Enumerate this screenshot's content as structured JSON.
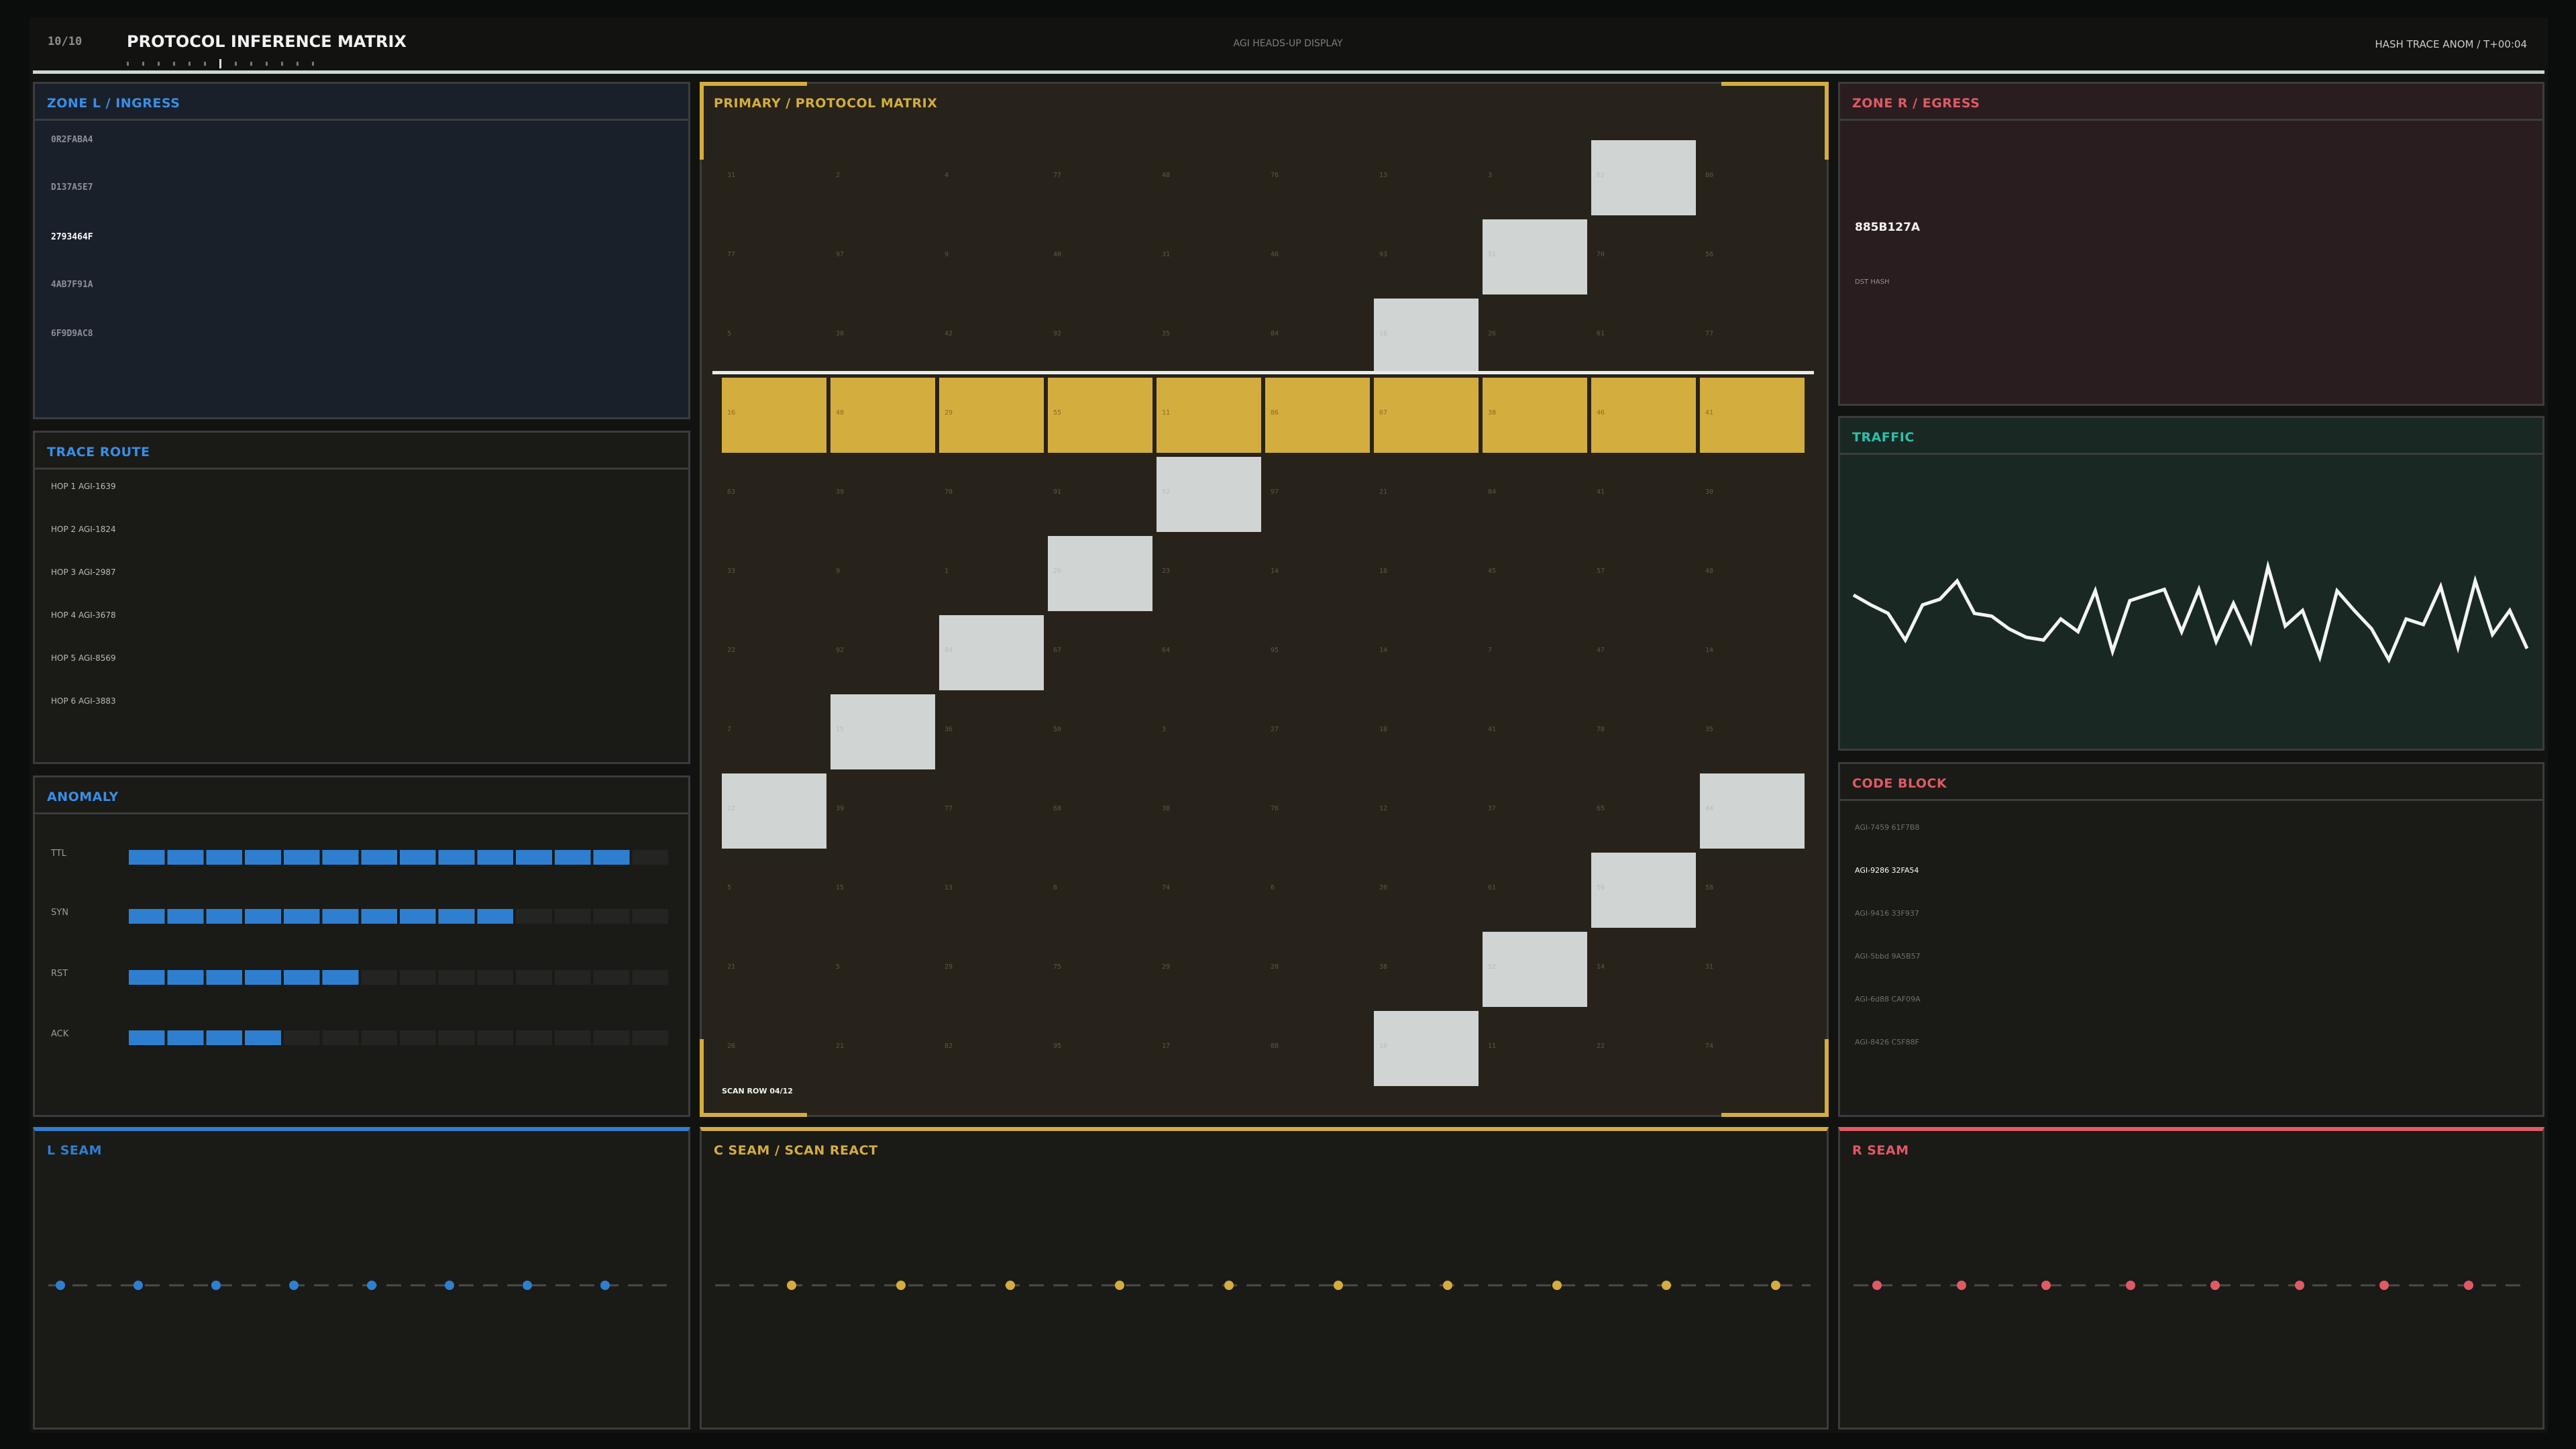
{
  "header": {
    "index": "10/10",
    "title": "PROTOCOL INFERENCE MATRIX",
    "center": "AGI HEADS-UP DISPLAY",
    "status": "HASH TRACE ANOM / T+00:04"
  },
  "zone_l": {
    "title": "ZONE L / INGRESS",
    "items": [
      "0R2FABA4",
      "D137A5E7",
      "2793464F",
      "4AB7F91A",
      "6F9D9AC8"
    ],
    "active": 2
  },
  "trace_route": {
    "title": "TRACE ROUTE",
    "hops": [
      "HOP 1 AGI-1639",
      "HOP 2 AGI-1824",
      "HOP 3 AGI-2987",
      "HOP 4 AGI-3678",
      "HOP 5 AGI-8569",
      "HOP 6 AGI-3883"
    ]
  },
  "anomaly": {
    "title": "ANOMALY",
    "max": 14,
    "bars": [
      {
        "label": "TTL",
        "value": 13
      },
      {
        "label": "SYN",
        "value": 10
      },
      {
        "label": "RST",
        "value": 6
      },
      {
        "label": "ACK",
        "value": 4
      }
    ]
  },
  "l_seam": {
    "title": "L SEAM"
  },
  "primary": {
    "title": "PRIMARY / PROTOCOL MATRIX",
    "active_row": 3,
    "active_cells": [
      [
        0,
        8
      ],
      [
        1,
        7
      ],
      [
        2,
        6
      ],
      [
        4,
        4
      ],
      [
        5,
        3
      ],
      [
        6,
        2
      ],
      [
        7,
        1
      ],
      [
        8,
        0
      ],
      [
        8,
        9
      ],
      [
        9,
        8
      ],
      [
        10,
        7
      ],
      [
        11,
        6
      ]
    ],
    "rows": [
      [
        31,
        2,
        4,
        77,
        48,
        76,
        13,
        3,
        62,
        80
      ],
      [
        77,
        97,
        9,
        40,
        31,
        46,
        93,
        51,
        70,
        56
      ],
      [
        5,
        30,
        42,
        92,
        35,
        84,
        18,
        26,
        61,
        77
      ],
      [
        16,
        48,
        29,
        55,
        11,
        86,
        67,
        38,
        46,
        41
      ],
      [
        63,
        39,
        70,
        91,
        52,
        97,
        21,
        84,
        41,
        30
      ],
      [
        33,
        9,
        1,
        26,
        23,
        14,
        18,
        45,
        57,
        48
      ],
      [
        22,
        92,
        84,
        67,
        64,
        95,
        14,
        7,
        47,
        14
      ],
      [
        7,
        15,
        36,
        50,
        3,
        27,
        18,
        41,
        78,
        35
      ],
      [
        12,
        39,
        77,
        68,
        38,
        76,
        12,
        37,
        65,
        44
      ],
      [
        5,
        15,
        13,
        8,
        74,
        6,
        20,
        61,
        59,
        58
      ],
      [
        21,
        5,
        29,
        75,
        29,
        20,
        38,
        52,
        14,
        31
      ],
      [
        26,
        21,
        82,
        95,
        17,
        88,
        10,
        11,
        22,
        74
      ]
    ],
    "footer": "SCAN ROW 04/12"
  },
  "c_seam": {
    "title": "C SEAM / SCAN REACT"
  },
  "zone_r": {
    "title": "ZONE R / EGRESS",
    "hash": "885B127A",
    "caption": "DST HASH"
  },
  "traffic": {
    "title": "TRAFFIC",
    "ylim": [
      0,
      100
    ],
    "values": [
      60,
      53,
      47,
      28,
      53,
      57,
      70,
      47,
      45,
      36,
      30,
      28,
      43,
      34,
      63,
      20,
      56,
      60,
      64,
      34,
      64,
      27,
      54,
      27,
      80,
      38,
      49,
      16,
      63,
      49,
      36,
      14,
      43,
      39,
      66,
      23,
      70,
      32,
      49,
      22
    ]
  },
  "code_block": {
    "title": "CODE BLOCK",
    "lines": [
      "AGI-7459 61F7B8",
      "AGI-9286 32FA54",
      "AGI-9416 33F937",
      "AGI-5bbd 9A5B57",
      "AGI-6d88 CAF09A",
      "AGI-8426 C5F88F"
    ],
    "active": 1
  },
  "r_seam": {
    "title": "R SEAM"
  }
}
